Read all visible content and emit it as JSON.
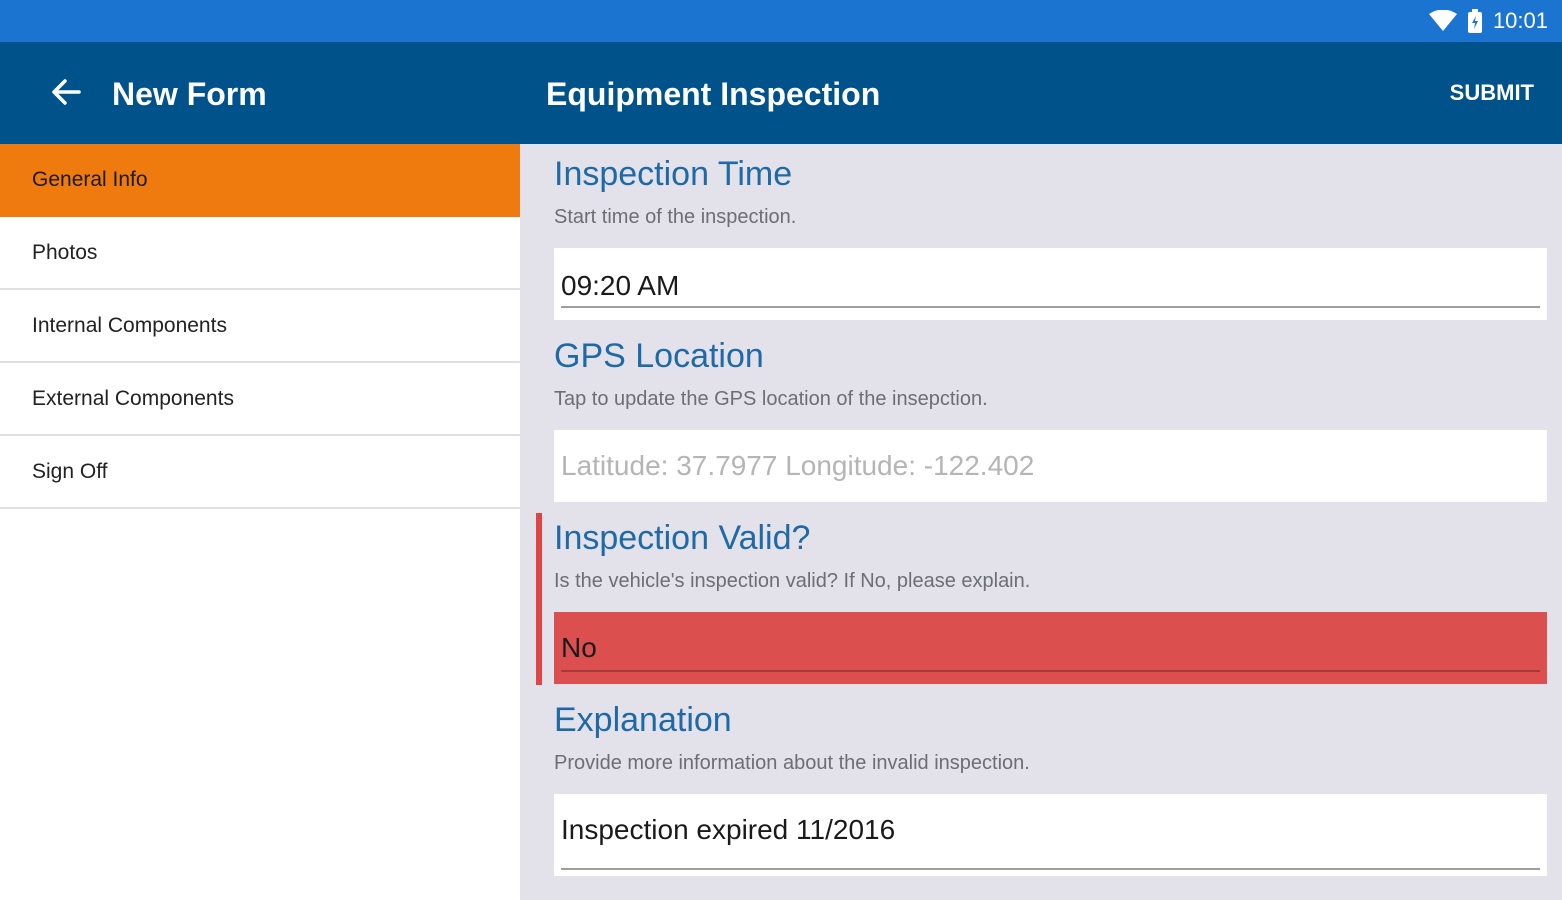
{
  "status_bar": {
    "time": "10:01",
    "icons": [
      "wifi-icon",
      "battery-icon"
    ]
  },
  "app_bar": {
    "back_icon": "arrow-back-icon",
    "left_title": "New Form",
    "right_title": "Equipment Inspection",
    "submit_label": "SUBMIT",
    "color": "#00538a"
  },
  "sidebar": {
    "active_color": "#ef7b0e",
    "items": [
      {
        "label": "General Info",
        "active": true
      },
      {
        "label": "Photos",
        "active": false
      },
      {
        "label": "Internal Components",
        "active": false
      },
      {
        "label": "External Components",
        "active": false
      },
      {
        "label": "Sign Off",
        "active": false
      }
    ]
  },
  "form": {
    "inspection_time": {
      "title": "Inspection Time",
      "description": "Start time of the inspection.",
      "value": "09:20 AM"
    },
    "gps_location": {
      "title": "GPS Location",
      "description": "Tap to update the GPS location of the insepction.",
      "value": "Latitude: 37.7977  Longitude: -122.402"
    },
    "inspection_valid": {
      "title": "Inspection Valid?",
      "description": "Is the vehicle's inspection valid? If No, please explain.",
      "value": "No",
      "error_color": "#dc4f4f"
    },
    "explanation": {
      "title": "Explanation",
      "description": "Provide more information about the invalid inspection.",
      "value": "Inspection expired 11/2016"
    }
  }
}
